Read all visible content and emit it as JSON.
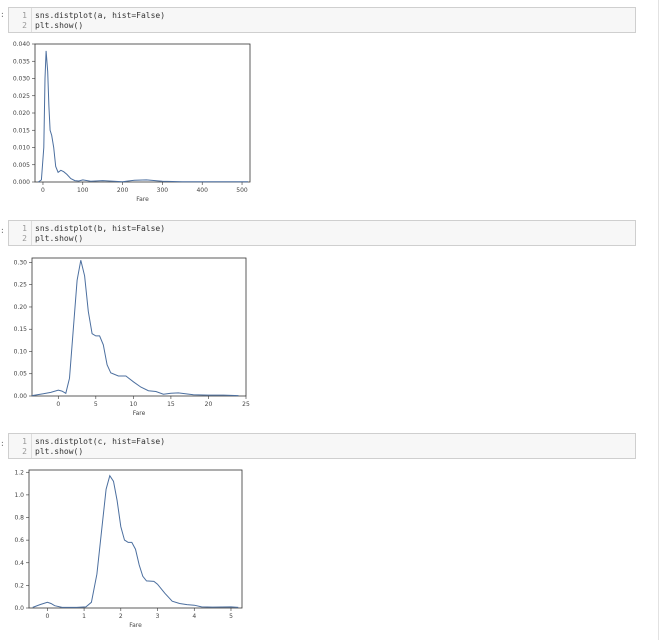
{
  "cells": [
    {
      "prompt": ":",
      "code": [
        {
          "num": "1",
          "text": "sns.distplot(a, hist=False)"
        },
        {
          "num": "2",
          "text": "plt.show()"
        }
      ]
    },
    {
      "prompt": ":",
      "code": [
        {
          "num": "1",
          "text": "sns.distplot(b, hist=False)"
        },
        {
          "num": "2",
          "text": "plt.show()"
        }
      ]
    },
    {
      "prompt": ":",
      "code": [
        {
          "num": "1",
          "text": "sns.distplot(c, hist=False)"
        },
        {
          "num": "2",
          "text": "plt.show()"
        }
      ]
    }
  ],
  "colors": {
    "curve": "#4c6f9f",
    "cell_bg": "#f7f7f7",
    "cell_border": "#cfcfcf"
  },
  "chart_data": [
    {
      "type": "line",
      "xlabel": "Fare",
      "ylabel": "",
      "xlim": [
        -20,
        520
      ],
      "ylim": [
        0,
        0.04
      ],
      "xticks": [
        0,
        100,
        200,
        300,
        400,
        500
      ],
      "yticks": [
        0.0,
        0.005,
        0.01,
        0.015,
        0.02,
        0.025,
        0.03,
        0.035,
        0.04
      ],
      "ytick_labels": [
        "0.000",
        "0.005",
        "0.010",
        "0.015",
        "0.020",
        "0.025",
        "0.030",
        "0.035",
        "0.040"
      ],
      "grid": false,
      "series": [
        {
          "x": [
            -12,
            -4,
            2,
            5,
            8,
            12,
            15,
            18,
            22,
            27,
            32,
            38,
            45,
            52,
            60,
            70,
            80,
            90,
            100,
            120,
            150,
            200,
            230,
            260,
            300,
            350,
            400,
            450,
            500,
            515
          ],
          "y": [
            0,
            0.0006,
            0.01,
            0.03,
            0.038,
            0.032,
            0.022,
            0.015,
            0.0135,
            0.01,
            0.0045,
            0.0028,
            0.0034,
            0.003,
            0.0022,
            0.001,
            0.0004,
            0.0003,
            0.0006,
            0.0002,
            0.0004,
            0.0001,
            0.0005,
            0.0006,
            0.0002,
            0.0001,
            0.0001,
            5e-05,
            0.0001,
            0.0001
          ]
        }
      ]
    },
    {
      "type": "line",
      "xlabel": "Fare",
      "ylabel": "",
      "xlim": [
        -3.5,
        25
      ],
      "ylim": [
        0,
        0.31
      ],
      "xticks": [
        0,
        5,
        10,
        15,
        20,
        25
      ],
      "yticks": [
        0.0,
        0.05,
        0.1,
        0.15,
        0.2,
        0.25,
        0.3
      ],
      "ytick_labels": [
        "0.00",
        "0.05",
        "0.10",
        "0.15",
        "0.20",
        "0.25",
        "0.30"
      ],
      "grid": false,
      "series": [
        {
          "x": [
            -3.5,
            -2,
            -1,
            0,
            0.5,
            1,
            1.5,
            2,
            2.5,
            3,
            3.5,
            4,
            4.5,
            5,
            5.5,
            6,
            6.5,
            7,
            8,
            9,
            10,
            11,
            12,
            13,
            14,
            15,
            16,
            18,
            20,
            22,
            24
          ],
          "y": [
            0.001,
            0.005,
            0.008,
            0.013,
            0.011,
            0.006,
            0.04,
            0.15,
            0.26,
            0.305,
            0.27,
            0.19,
            0.14,
            0.135,
            0.135,
            0.115,
            0.07,
            0.052,
            0.045,
            0.045,
            0.032,
            0.02,
            0.012,
            0.01,
            0.004,
            0.006,
            0.007,
            0.003,
            0.002,
            0.002,
            0.001
          ]
        }
      ]
    },
    {
      "type": "line",
      "xlabel": "Fare",
      "ylabel": "",
      "xlim": [
        -0.5,
        5.3
      ],
      "ylim": [
        0,
        1.22
      ],
      "xticks": [
        0,
        1,
        2,
        3,
        4,
        5
      ],
      "yticks": [
        0.0,
        0.2,
        0.4,
        0.6,
        0.8,
        1.0,
        1.2
      ],
      "ytick_labels": [
        "0.0",
        "0.2",
        "0.4",
        "0.6",
        "0.8",
        "1.0",
        "1.2"
      ],
      "grid": false,
      "series": [
        {
          "x": [
            -0.4,
            -0.2,
            0,
            0.1,
            0.2,
            0.4,
            0.8,
            1.05,
            1.2,
            1.35,
            1.5,
            1.6,
            1.7,
            1.8,
            1.9,
            2.0,
            2.1,
            2.2,
            2.3,
            2.4,
            2.5,
            2.6,
            2.7,
            2.9,
            3.0,
            3.2,
            3.4,
            3.6,
            3.8,
            4.0,
            4.2,
            4.5,
            5.0,
            5.2
          ],
          "y": [
            0.005,
            0.03,
            0.05,
            0.04,
            0.02,
            0.005,
            0.005,
            0.01,
            0.05,
            0.3,
            0.75,
            1.05,
            1.17,
            1.12,
            0.95,
            0.72,
            0.6,
            0.58,
            0.58,
            0.52,
            0.38,
            0.28,
            0.24,
            0.235,
            0.21,
            0.13,
            0.06,
            0.04,
            0.03,
            0.025,
            0.01,
            0.008,
            0.01,
            0.005
          ]
        }
      ]
    }
  ]
}
